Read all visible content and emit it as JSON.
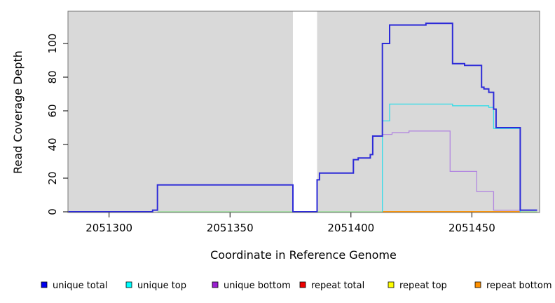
{
  "chart_data": {
    "type": "line",
    "subtype": "step-coverage-plot",
    "title": "",
    "xlabel": "Coordinate in Reference Genome",
    "ylabel": "Read Coverage Depth",
    "xlim": [
      2051283,
      2051478
    ],
    "ylim": [
      0,
      119
    ],
    "x_ticks": [
      2051300,
      2051350,
      2051400,
      2051450
    ],
    "y_ticks": [
      0,
      20,
      40,
      60,
      80,
      100
    ],
    "grid": false,
    "panel_background": "#d9d9d9",
    "gap_region": {
      "x_start": 2051376,
      "x_end": 2051386,
      "fill": "#ffffff"
    },
    "legend_position": "bottom",
    "series": [
      {
        "name": "repeat top",
        "color": "#ffff00",
        "width": 1.4,
        "points": [
          [
            2051413,
            0
          ]
        ],
        "end": 2051470
      },
      {
        "name": "repeat total",
        "color": "#ee0000",
        "width": 1.4,
        "points": [
          [
            2051413,
            0
          ]
        ],
        "end": 2051470
      },
      {
        "name": "zero baseline overlap",
        "color": "#94d894",
        "width": 1.5,
        "points": [
          [
            2051320,
            0
          ]
        ],
        "end": 2051477
      },
      {
        "name": "repeat bottom",
        "color": "#ff9100",
        "width": 1.8,
        "points": [
          [
            2051413,
            0
          ]
        ],
        "end": 2051470
      },
      {
        "name": "unique bottom",
        "color": "#b287e0",
        "width": 1.3,
        "points": [
          [
            2051413,
            46
          ],
          [
            2051417,
            47
          ],
          [
            2051424,
            48
          ],
          [
            2051441,
            24
          ],
          [
            2051452,
            12
          ],
          [
            2051459,
            1
          ],
          [
            2051470,
            0
          ]
        ],
        "end": 2051470
      },
      {
        "name": "unique top",
        "color": "#35dce8",
        "width": 1.3,
        "points": [
          [
            2051413,
            0
          ],
          [
            2051413,
            54
          ],
          [
            2051416,
            64
          ],
          [
            2051442,
            63
          ],
          [
            2051457,
            62
          ],
          [
            2051459,
            49.5
          ],
          [
            2051470,
            0
          ]
        ],
        "end": 2051470
      },
      {
        "name": "unique total",
        "color": "#2d2bd8",
        "width": 2,
        "points": [
          [
            2051283,
            0
          ],
          [
            2051318,
            1
          ],
          [
            2051320,
            16
          ],
          [
            2051376,
            0
          ],
          [
            2051386,
            19
          ],
          [
            2051387,
            23
          ],
          [
            2051401,
            31
          ],
          [
            2051403,
            32
          ],
          [
            2051408,
            34
          ],
          [
            2051409,
            45
          ],
          [
            2051413,
            100
          ],
          [
            2051416,
            111
          ],
          [
            2051431,
            112
          ],
          [
            2051442,
            88
          ],
          [
            2051447,
            87
          ],
          [
            2051454,
            74
          ],
          [
            2051455,
            73
          ],
          [
            2051457,
            71
          ],
          [
            2051459,
            61
          ],
          [
            2051460,
            50
          ],
          [
            2051470,
            1
          ]
        ],
        "end": 2051477
      }
    ]
  },
  "axes": {
    "x_title": "Coordinate in Reference Genome",
    "y_title": "Read Coverage Depth"
  },
  "legend": {
    "items": [
      {
        "label": "unique total",
        "color": "#0000ee"
      },
      {
        "label": "unique top",
        "color": "#00ffff"
      },
      {
        "label": "unique bottom",
        "color": "#9a20d0"
      },
      {
        "label": "repeat total",
        "color": "#ee0000"
      },
      {
        "label": "repeat top",
        "color": "#ffff00"
      },
      {
        "label": "repeat bottom",
        "color": "#ff9100"
      }
    ]
  },
  "colors": {
    "panel": "#d9d9d9",
    "panel_border": "#777777",
    "gap_band": "#ffffff",
    "axis_text": "#000000"
  }
}
